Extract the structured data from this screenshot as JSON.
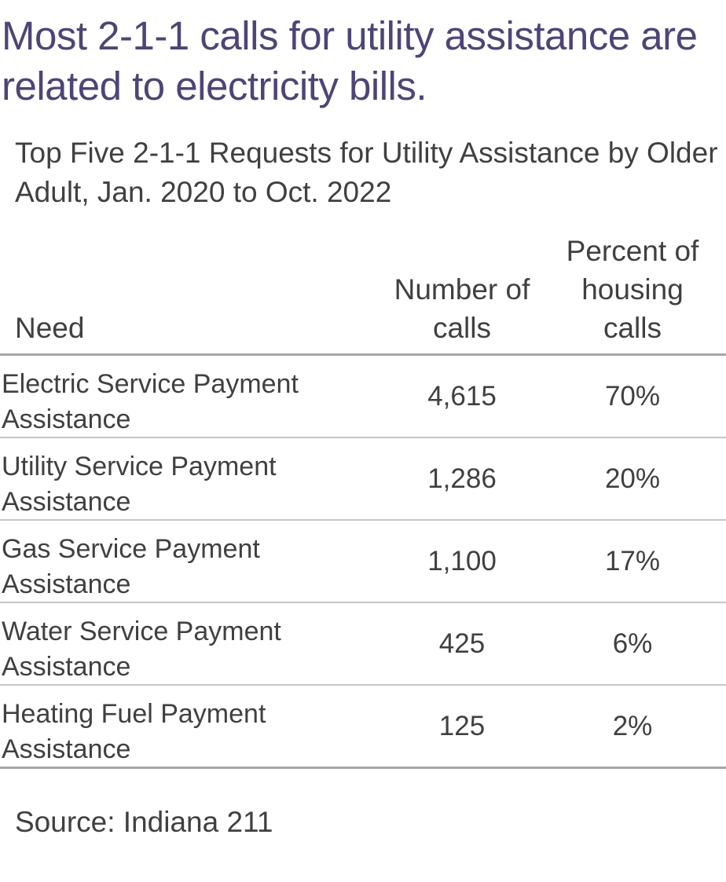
{
  "headline": "Most 2-1-1 calls for utility assistance are related to electricity bills.",
  "chart_data": {
    "type": "table",
    "title": "Top Five 2-1-1 Requests for Utility Assistance by Older Adult, Jan. 2020 to Oct. 2022",
    "columns": [
      "Need",
      "Number of calls",
      "Percent of housing calls"
    ],
    "rows": [
      {
        "need": "Electric Service Payment Assistance",
        "calls": "4,615",
        "percent": "70%"
      },
      {
        "need": "Utility Service Payment Assistance",
        "calls": "1,286",
        "percent": "20%"
      },
      {
        "need": "Gas Service Payment Assistance",
        "calls": "1,100",
        "percent": "17%"
      },
      {
        "need": "Water Service Payment Assistance",
        "calls": "425",
        "percent": "6%"
      },
      {
        "need": "Heating Fuel Payment Assistance",
        "calls": "125",
        "percent": "2%"
      }
    ],
    "source": "Source: Indiana 211"
  },
  "colors": {
    "headline": "#4f4476",
    "text": "#404040",
    "rule_dark": "#a9a6a2",
    "rule_light": "#c8c5c1"
  }
}
